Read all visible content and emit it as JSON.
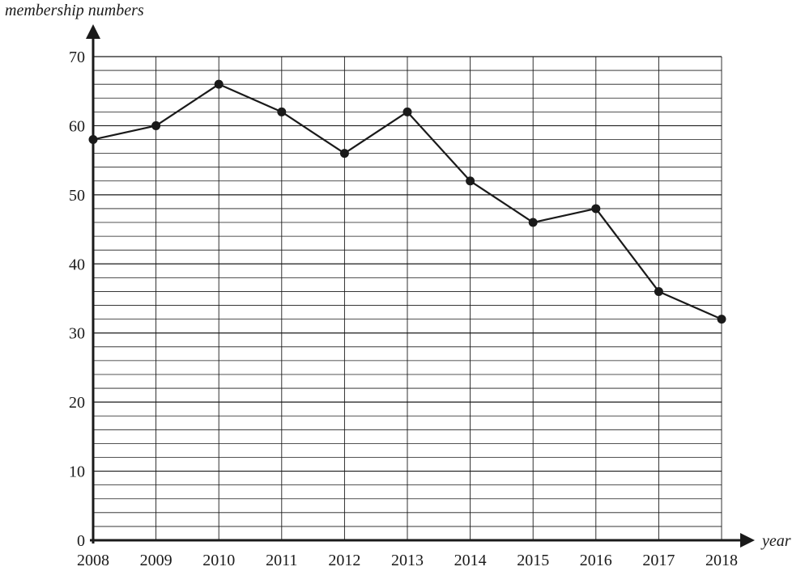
{
  "chart_data": {
    "type": "line",
    "title": "",
    "xlabel": "year",
    "ylabel": "membership numbers",
    "x": [
      2008,
      2009,
      2010,
      2011,
      2012,
      2013,
      2014,
      2015,
      2016,
      2017,
      2018
    ],
    "series": [
      {
        "values": [
          58,
          60,
          66,
          62,
          56,
          62,
          52,
          46,
          48,
          36,
          32
        ]
      }
    ],
    "xlim": [
      2008,
      2018
    ],
    "ylim": [
      0,
      70
    ],
    "y_major_ticks": [
      0,
      10,
      20,
      30,
      40,
      50,
      60,
      70
    ],
    "y_minor_step": 2,
    "grid": true,
    "line_color": "#1a1a1a",
    "grid_color": "#1a1a1a"
  }
}
